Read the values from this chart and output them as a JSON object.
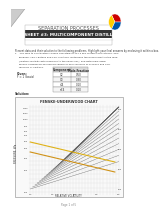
{
  "title": "SEPARATION PROCESSES",
  "subtitle": "WORKSHEET #3: MULTICOMPONENT DISTILLATION",
  "body_text": "Present data and their solution to the following problems. Highlight your final answers by enclosing it within a box.",
  "given_label": "Given:",
  "given_value": "F = 1 (basis)",
  "table_headers": [
    "Component",
    "Mole Fraction"
  ],
  "table_rows": [
    [
      "C2",
      "0.50"
    ],
    [
      "C3",
      "0.30"
    ],
    [
      "iC4",
      "0.10"
    ],
    [
      "nC4",
      "0.10"
    ]
  ],
  "solution_label": "Solution:",
  "chart_title": "FENSKE-UNDERWOOD CHART",
  "page_label": "Page 1 of 5",
  "bg_color": "#ffffff",
  "header_color": "#404040"
}
